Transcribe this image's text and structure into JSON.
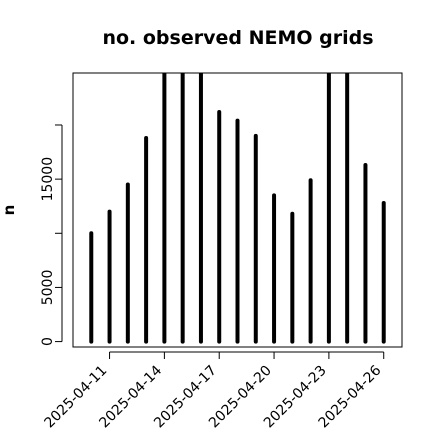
{
  "chart_data": {
    "type": "bar",
    "title": "no. observed NEMO grids",
    "ylabel": "n",
    "xlabel": "",
    "x": [
      "2025-04-10",
      "2025-04-11",
      "2025-04-12",
      "2025-04-13",
      "2025-04-14",
      "2025-04-15",
      "2025-04-16",
      "2025-04-17",
      "2025-04-18",
      "2025-04-19",
      "2025-04-20",
      "2025-04-21",
      "2025-04-22",
      "2025-04-23",
      "2025-04-24",
      "2025-04-25",
      "2025-04-26"
    ],
    "values": [
      10000,
      12000,
      14500,
      18800,
      25000,
      25000,
      25000,
      21200,
      20400,
      19000,
      13500,
      11800,
      14900,
      25000,
      25000,
      16300,
      12800
    ],
    "xlim": [
      "2025-04-09",
      "2025-04-27"
    ],
    "ylim": [
      -500,
      24800
    ],
    "xticks": [
      "2025-04-11",
      "2025-04-14",
      "2025-04-17",
      "2025-04-20",
      "2025-04-23",
      "2025-04-26"
    ],
    "yticks": [
      0,
      5000,
      10000,
      15000,
      20000
    ],
    "ytick_labels": [
      "0",
      "5000",
      "",
      "15000",
      ""
    ],
    "color": "#000000",
    "grid": false,
    "legend": "none"
  }
}
